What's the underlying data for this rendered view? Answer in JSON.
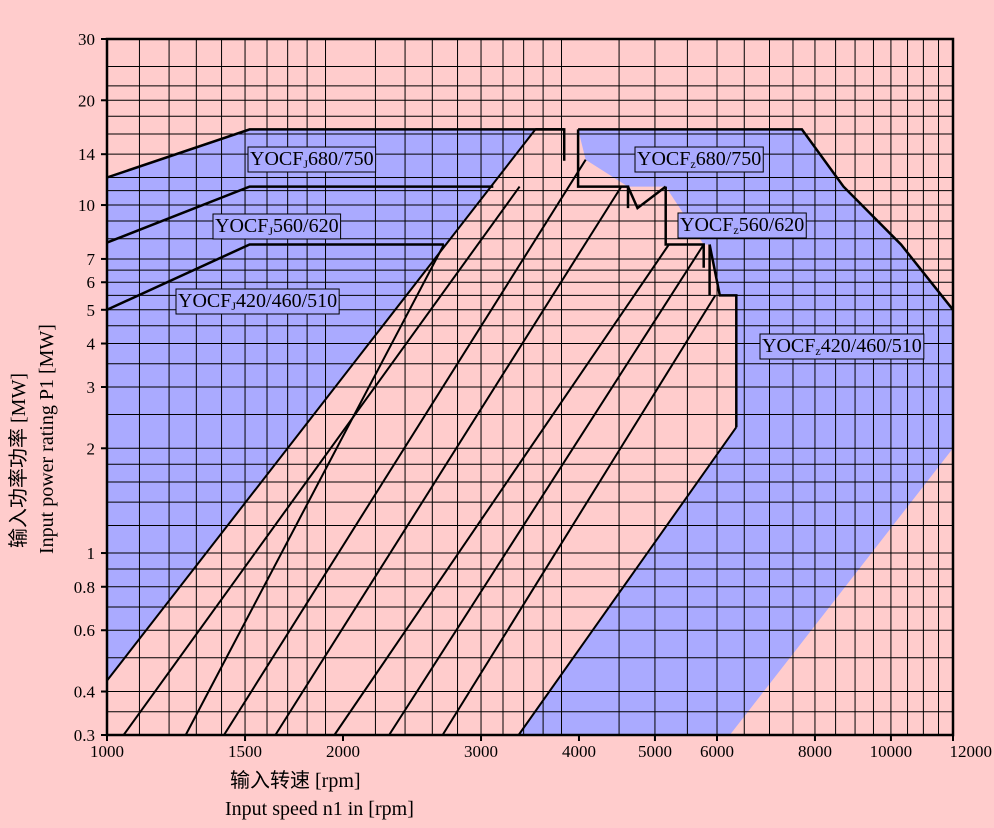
{
  "chart_data": {
    "type": "area",
    "xscale": "log",
    "yscale": "log",
    "xlim": [
      1000,
      12000
    ],
    "ylim": [
      0.3,
      30
    ],
    "x_ticks": [
      1000,
      1500,
      2000,
      3000,
      4000,
      5000,
      6000,
      8000,
      10000,
      12000
    ],
    "x_tick_labels": [
      "1000",
      "1500",
      "2000",
      "3000",
      "4000",
      "5000",
      "6000",
      "8000",
      "10000",
      "12000"
    ],
    "y_ticks": [
      0.3,
      0.4,
      0.6,
      0.8,
      1,
      2,
      3,
      4,
      5,
      6,
      7,
      10,
      14,
      20,
      30
    ],
    "y_tick_labels": [
      "0.3",
      "0.4",
      "0.6",
      "0.8",
      "1",
      "2",
      "3",
      "4",
      "5",
      "6",
      "7",
      "10",
      "14",
      "20",
      "30"
    ],
    "xlabel_cn": "输入转速  [rpm]",
    "xlabel_en": "Input speed n1 in [rpm]",
    "ylabel_cn": "输入功率功率  [MW]",
    "ylabel_en": "Input power rating P1 [MW]",
    "grid": true,
    "series": [
      {
        "name": "YOCFJ680/750",
        "type": "region",
        "points": [
          [
            1000,
            12
          ],
          [
            1520,
            16.5
          ],
          [
            3830,
            16.5
          ],
          [
            3830,
            13.4
          ]
        ]
      },
      {
        "name": "YOCFJ560/620",
        "type": "region",
        "points": [
          [
            1000,
            7.8
          ],
          [
            1520,
            11.3
          ],
          [
            3110,
            11.3
          ]
        ]
      },
      {
        "name": "YOCFJ420/460/510",
        "type": "region",
        "points": [
          [
            1000,
            5
          ],
          [
            1520,
            7.7
          ],
          [
            2690,
            7.7
          ]
        ]
      },
      {
        "name": "YOCFz680/750",
        "type": "region",
        "points": [
          [
            3990,
            16.5
          ],
          [
            7700,
            16.5
          ],
          [
            8700,
            11.3
          ],
          [
            10300,
            7.7
          ],
          [
            12000,
            5
          ]
        ]
      },
      {
        "name": "YOCFz560/620",
        "type": "region",
        "points": [
          [
            4620,
            11.3
          ],
          [
            4750,
            9.8
          ],
          [
            5160,
            11.3
          ]
        ]
      },
      {
        "name": "YOCFz420/460/510",
        "type": "region",
        "points": [
          [
            5870,
            7.7
          ],
          [
            6050,
            5.5
          ],
          [
            6350,
            5.5
          ],
          [
            6350,
            2.3
          ]
        ]
      }
    ],
    "guide_lines": [
      [
        [
          1000,
          0.43
        ],
        [
          3520,
          16.5
        ]
      ],
      [
        [
          1050,
          0.3
        ],
        [
          3360,
          11.3
        ]
      ],
      [
        [
          1260,
          0.3
        ],
        [
          2690,
          7.7
        ]
      ],
      [
        [
          1410,
          0.3
        ],
        [
          4080,
          13.5
        ]
      ],
      [
        [
          1640,
          0.3
        ],
        [
          4530,
          11.3
        ]
      ],
      [
        [
          1950,
          0.3
        ],
        [
          5210,
          7.7
        ]
      ],
      [
        [
          2290,
          0.3
        ],
        [
          5770,
          7.7
        ]
      ],
      [
        [
          2680,
          0.3
        ],
        [
          5970,
          5.5
        ]
      ],
      [
        [
          3350,
          0.3
        ],
        [
          6350,
          2.3
        ]
      ]
    ],
    "labels": [
      {
        "text": "YOCFJ680/750",
        "main": "YOCF",
        "sub": "J",
        "rest": "680/750"
      },
      {
        "text": "YOCFJ560/620",
        "main": "YOCF",
        "sub": "J",
        "rest": "560/620"
      },
      {
        "text": "YOCFJ420/460/510",
        "main": "YOCF",
        "sub": "J",
        "rest": "420/460/510"
      },
      {
        "text": "YOCFz680/750",
        "main": "YOCF",
        "sub": "z",
        "rest": "680/750"
      },
      {
        "text": "YOCFz560/620",
        "main": "YOCF",
        "sub": "z",
        "rest": "560/620"
      },
      {
        "text": "YOCFz420/460/510",
        "main": "YOCF",
        "sub": "z",
        "rest": "420/460/510"
      }
    ],
    "colors": {
      "background": "#ffcccc",
      "fill": "#aaaaff",
      "line": "#000000",
      "grid": "#000000"
    }
  }
}
